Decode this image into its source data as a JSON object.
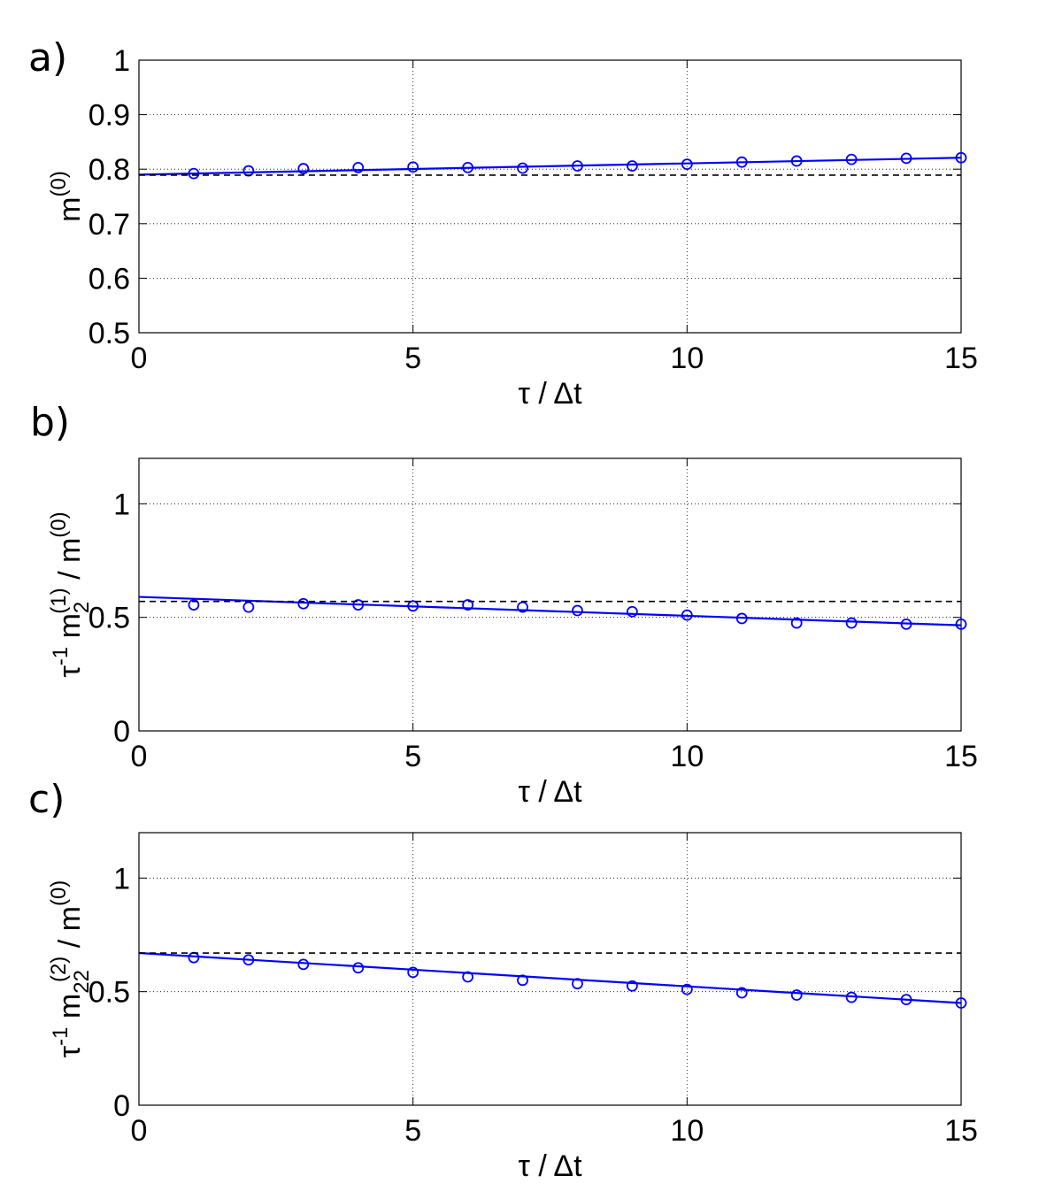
{
  "chart_data": [
    {
      "type": "line",
      "panel_label": "a)",
      "xlabel": "τ / Δt",
      "ylabel": {
        "base": "m",
        "sup": "(0)"
      },
      "xlim": [
        0,
        15
      ],
      "ylim": [
        0.5,
        1
      ],
      "xticks": [
        0,
        5,
        10,
        15
      ],
      "yticks": [
        0.5,
        0.6,
        0.7,
        0.8,
        0.9,
        1
      ],
      "ytick_labels": [
        "0.5",
        "0.6",
        "0.7",
        "0.8",
        "0.9",
        "1"
      ],
      "grid": true,
      "series": [
        {
          "name": "data",
          "style": "circles",
          "color": "#0000ff",
          "x": [
            1,
            2,
            3,
            4,
            5,
            6,
            7,
            8,
            9,
            10,
            11,
            12,
            13,
            14,
            15
          ],
          "y": [
            0.792,
            0.797,
            0.801,
            0.803,
            0.804,
            0.803,
            0.802,
            0.806,
            0.806,
            0.809,
            0.813,
            0.815,
            0.818,
            0.82,
            0.821
          ]
        },
        {
          "name": "fit",
          "style": "solid",
          "color": "#0000ff",
          "x": [
            0,
            15
          ],
          "y": [
            0.79,
            0.821
          ]
        },
        {
          "name": "reference",
          "style": "dashed",
          "color": "#000000",
          "x": [
            0,
            15
          ],
          "y": [
            0.789,
            0.789
          ]
        }
      ]
    },
    {
      "type": "line",
      "panel_label": "b)",
      "xlabel": "τ / Δt",
      "ylabel": {
        "pre": "τ",
        "pre_sup": "-1",
        "base": "m",
        "sub": "2",
        "sup": "(1)",
        "post": " / m",
        "post_sup": "(0)"
      },
      "xlim": [
        0,
        15
      ],
      "ylim": [
        0,
        1.2
      ],
      "xticks": [
        0,
        5,
        10,
        15
      ],
      "yticks": [
        0,
        0.5,
        1
      ],
      "ytick_labels": [
        "0",
        "0.5",
        "1"
      ],
      "grid": true,
      "series": [
        {
          "name": "data",
          "style": "circles",
          "color": "#0000ff",
          "x": [
            1,
            2,
            3,
            4,
            5,
            6,
            7,
            8,
            9,
            10,
            11,
            12,
            13,
            14,
            15
          ],
          "y": [
            0.555,
            0.545,
            0.56,
            0.555,
            0.55,
            0.555,
            0.545,
            0.53,
            0.525,
            0.51,
            0.495,
            0.475,
            0.475,
            0.47,
            0.47
          ]
        },
        {
          "name": "fit",
          "style": "solid",
          "color": "#0000ff",
          "x": [
            0,
            15
          ],
          "y": [
            0.59,
            0.465
          ]
        },
        {
          "name": "reference",
          "style": "dashed",
          "color": "#000000",
          "x": [
            0,
            15
          ],
          "y": [
            0.57,
            0.57
          ]
        }
      ]
    },
    {
      "type": "line",
      "panel_label": "c)",
      "xlabel": "τ / Δt",
      "ylabel": {
        "pre": "τ",
        "pre_sup": "-1",
        "base": "m",
        "sub": "22",
        "sup": "(2)",
        "post": " / m",
        "post_sup": "(0)"
      },
      "xlim": [
        0,
        15
      ],
      "ylim": [
        0,
        1.2
      ],
      "xticks": [
        0,
        5,
        10,
        15
      ],
      "yticks": [
        0,
        0.5,
        1
      ],
      "ytick_labels": [
        "0",
        "0.5",
        "1"
      ],
      "grid": true,
      "series": [
        {
          "name": "data",
          "style": "circles",
          "color": "#0000ff",
          "x": [
            1,
            2,
            3,
            4,
            5,
            6,
            7,
            8,
            9,
            10,
            11,
            12,
            13,
            14,
            15
          ],
          "y": [
            0.65,
            0.64,
            0.62,
            0.605,
            0.585,
            0.565,
            0.55,
            0.535,
            0.525,
            0.51,
            0.495,
            0.485,
            0.475,
            0.465,
            0.45
          ]
        },
        {
          "name": "fit",
          "style": "solid",
          "color": "#0000ff",
          "x": [
            0,
            15
          ],
          "y": [
            0.67,
            0.45
          ]
        },
        {
          "name": "reference",
          "style": "dashed",
          "color": "#000000",
          "x": [
            0,
            15
          ],
          "y": [
            0.67,
            0.67
          ]
        }
      ]
    }
  ]
}
